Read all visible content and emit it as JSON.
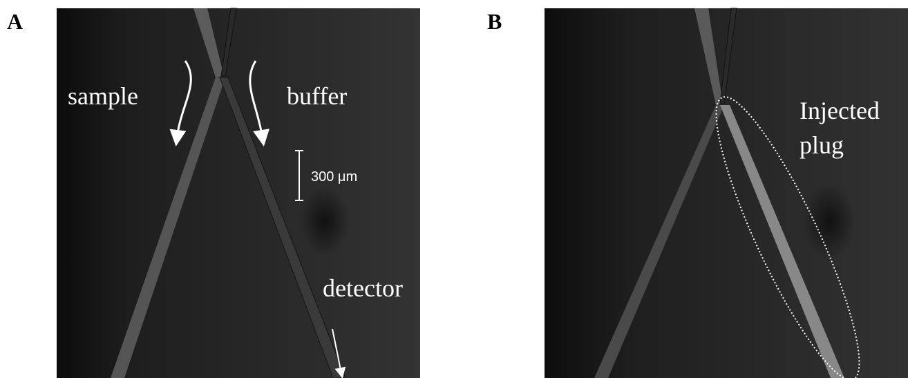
{
  "panels": [
    {
      "label": "A",
      "inlet_left": "sample",
      "inlet_right": "buffer",
      "scale_bar": "300 μm",
      "outlet": "detector"
    },
    {
      "label": "B",
      "region": [
        "Injected",
        "plug"
      ]
    }
  ]
}
